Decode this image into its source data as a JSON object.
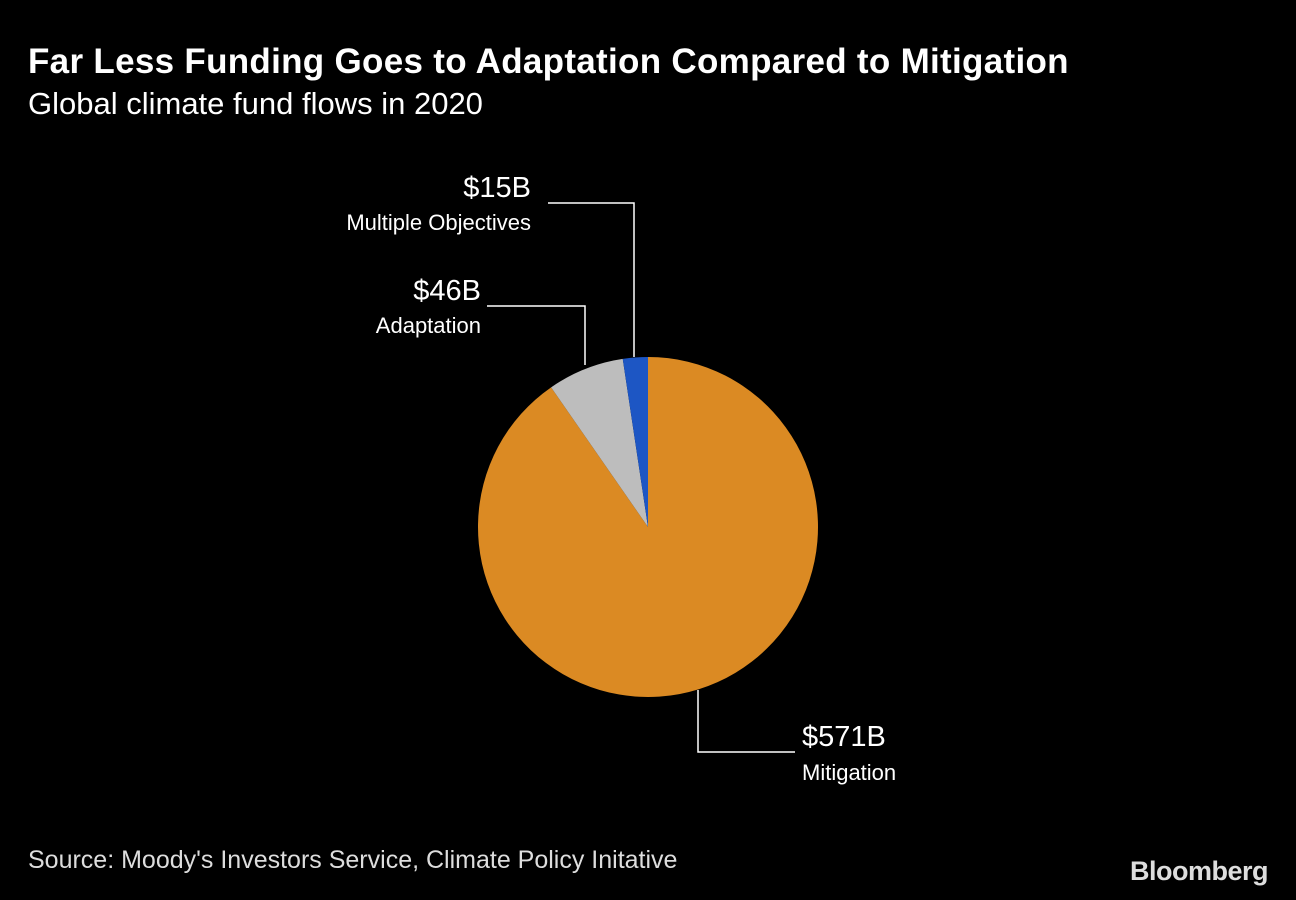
{
  "chart_data": {
    "type": "pie",
    "title": "Far Less Funding Goes to Adaptation Compared to Mitigation",
    "subtitle": "Global climate fund flows in 2020",
    "unit": "USD billions",
    "slices": [
      {
        "name": "Mitigation",
        "value": 571,
        "label": "$571B",
        "color": "#DB8A23"
      },
      {
        "name": "Adaptation",
        "value": 46,
        "label": "$46B",
        "color": "#BDBDBD"
      },
      {
        "name": "Multiple Objectives",
        "value": 15,
        "label": "$15B",
        "color": "#1D56C4"
      }
    ],
    "source": "Source: Moody's Investors Service, Climate Policy Initative"
  },
  "brand": "Bloomberg"
}
